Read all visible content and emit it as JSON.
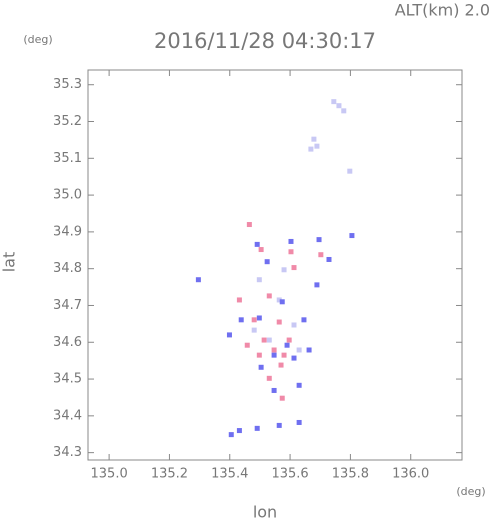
{
  "chart_data": {
    "type": "scatter",
    "title": "2016/11/28 04:30:17",
    "subtitle": "ALT(km) 2.0",
    "y_unit": "(deg)",
    "x_unit": "(deg)",
    "xlabel": "lon",
    "ylabel": "lat",
    "xlim": [
      134.93,
      136.17
    ],
    "ylim": [
      34.28,
      35.34
    ],
    "xticks": [
      {
        "value": 135.0,
        "label": "135.0"
      },
      {
        "value": 135.2,
        "label": "135.2"
      },
      {
        "value": 135.4,
        "label": "135.4"
      },
      {
        "value": 135.6,
        "label": "135.6"
      },
      {
        "value": 135.8,
        "label": "135.8"
      },
      {
        "value": 136.0,
        "label": "136.0"
      }
    ],
    "yticks": [
      {
        "value": 34.3,
        "label": "34.3"
      },
      {
        "value": 34.4,
        "label": "34.4"
      },
      {
        "value": 34.5,
        "label": "34.5"
      },
      {
        "value": 34.6,
        "label": "34.6"
      },
      {
        "value": 34.7,
        "label": "34.7"
      },
      {
        "value": 34.8,
        "label": "34.8"
      },
      {
        "value": 34.9,
        "label": "34.9"
      },
      {
        "value": 35.0,
        "label": "35.0"
      },
      {
        "value": 35.1,
        "label": "35.1"
      },
      {
        "value": 35.2,
        "label": "35.2"
      },
      {
        "value": 35.3,
        "label": "35.3"
      }
    ],
    "series": [
      {
        "color": "#c8c8f4",
        "x": [
          135.745,
          135.762,
          135.778,
          135.679,
          135.689,
          135.669,
          135.798,
          135.498,
          135.564,
          135.531,
          135.63,
          135.613,
          135.481,
          135.58
        ],
        "values": [
          35.254,
          35.243,
          35.229,
          35.152,
          35.133,
          35.125,
          35.065,
          34.77,
          34.715,
          34.606,
          34.579,
          34.647,
          34.633,
          34.797
        ]
      },
      {
        "color": "#6f6ff0",
        "x": [
          135.296,
          135.491,
          135.524,
          135.603,
          135.696,
          135.805,
          135.729,
          135.689,
          135.498,
          135.438,
          135.646,
          135.59,
          135.613,
          135.63,
          135.547,
          135.399,
          135.574,
          135.504,
          135.432,
          135.491,
          135.564,
          135.63,
          135.405,
          135.663,
          135.547
        ],
        "values": [
          34.77,
          34.866,
          34.819,
          34.874,
          34.879,
          34.89,
          34.825,
          34.756,
          34.666,
          34.661,
          34.661,
          34.592,
          34.557,
          34.483,
          34.469,
          34.62,
          34.71,
          34.532,
          34.36,
          34.366,
          34.374,
          34.382,
          34.349,
          34.579,
          34.565
        ]
      },
      {
        "color": "#f08aa8",
        "x": [
          135.465,
          135.504,
          135.603,
          135.432,
          135.531,
          135.481,
          135.564,
          135.514,
          135.597,
          135.547,
          135.58,
          135.531,
          135.57,
          135.574,
          135.498,
          135.613,
          135.702,
          135.458
        ],
        "values": [
          34.92,
          34.852,
          34.846,
          34.715,
          34.726,
          34.661,
          34.655,
          34.606,
          34.606,
          34.579,
          34.565,
          34.502,
          34.538,
          34.448,
          34.565,
          34.803,
          34.838,
          34.592
        ]
      }
    ]
  }
}
